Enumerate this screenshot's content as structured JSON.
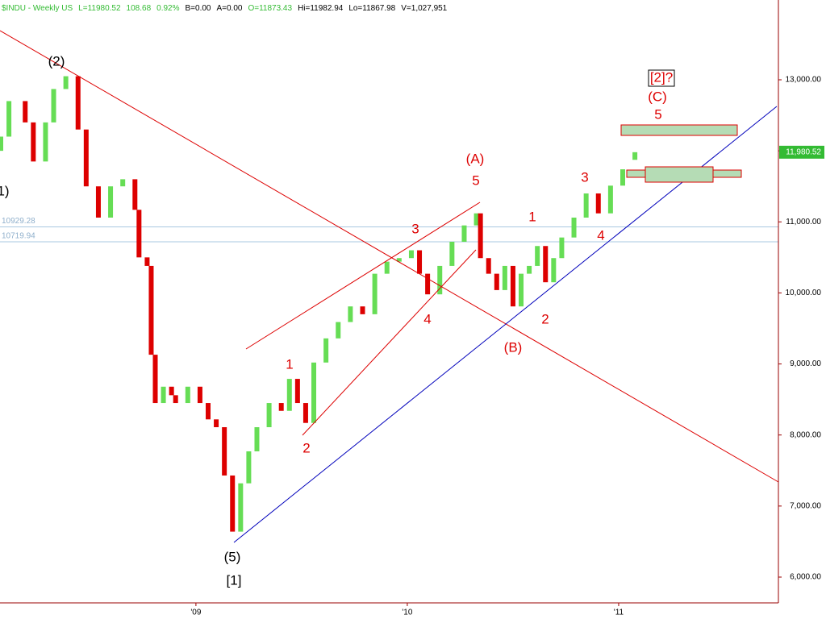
{
  "chart_data": {
    "type": "candlestick",
    "header": [
      {
        "text": "$INDU - Weekly  US",
        "color": "#33bb33"
      },
      {
        "text": "L=11980.52",
        "color": "#33bb33"
      },
      {
        "text": "108.68",
        "color": "#33bb33"
      },
      {
        "text": "0.92%",
        "color": "#33bb33"
      },
      {
        "text": "B=0.00",
        "color": "#000000"
      },
      {
        "text": "A=0.00",
        "color": "#000000"
      },
      {
        "text": "O=11873.43",
        "color": "#33bb33"
      },
      {
        "text": "Hi=11982.94",
        "color": "#000000"
      },
      {
        "text": "Lo=11867.98",
        "color": "#000000"
      },
      {
        "text": "V=1,027,951",
        "color": "#000000"
      }
    ],
    "x": [
      4,
      6,
      10,
      12,
      15,
      17,
      20,
      23,
      25,
      28,
      31,
      34,
      37,
      38,
      40,
      41,
      42,
      44,
      46,
      47,
      50,
      53,
      55,
      57,
      59,
      61,
      63,
      65,
      67,
      70,
      73,
      75,
      77,
      79,
      81,
      84,
      87,
      90,
      93,
      96,
      99,
      102,
      105,
      107,
      109,
      112,
      115,
      118,
      121,
      122,
      124,
      126,
      128,
      130,
      132,
      134,
      136,
      138,
      140,
      142,
      145,
      148,
      151,
      154,
      157,
      160
    ],
    "open": [
      12000,
      12200,
      12700,
      12400,
      11850,
      12400,
      12870,
      13050,
      12300,
      11500,
      11060,
      11500,
      11600,
      11170,
      10500,
      10380,
      9130,
      8450,
      8680,
      8560,
      8450,
      8680,
      8450,
      8220,
      8110,
      7430,
      6640,
      7320,
      7770,
      8110,
      8450,
      8340,
      8790,
      8450,
      8170,
      9020,
      9360,
      9590,
      9810,
      9700,
      10270,
      10440,
      10490,
      10600,
      10270,
      9980,
      10380,
      10720,
      10950,
      11120,
      10490,
      10270,
      10040,
      10380,
      9810,
      10270,
      10380,
      10660,
      10150,
      10490,
      10780,
      11060,
      11400,
      11120,
      11510,
      11873.43
    ],
    "close": [
      12200,
      12700,
      12400,
      11850,
      12400,
      12870,
      13050,
      12300,
      11500,
      11060,
      11500,
      11600,
      11170,
      10500,
      10380,
      9130,
      8450,
      8680,
      8560,
      8450,
      8680,
      8450,
      8220,
      8110,
      7430,
      6640,
      7320,
      7770,
      8110,
      8450,
      8340,
      8790,
      8450,
      8170,
      9020,
      9360,
      9590,
      9810,
      9700,
      10270,
      10440,
      10490,
      10600,
      10270,
      9980,
      10380,
      10720,
      10950,
      11120,
      10490,
      10270,
      10040,
      10380,
      9810,
      10270,
      10380,
      10660,
      10150,
      10490,
      10780,
      11060,
      11400,
      11120,
      11510,
      11740,
      11980.52
    ],
    "up_color": "#66dd55",
    "down_color": "#dd0000",
    "xlim": [
      3.8,
      195.3
    ],
    "xticks": [
      {
        "value": 52,
        "label": "'09"
      },
      {
        "value": 104,
        "label": "'10"
      },
      {
        "value": 156,
        "label": "'11"
      }
    ],
    "ylim": [
      5637,
      14123
    ],
    "yticks": [
      {
        "value": 6000,
        "label": "6,000.00"
      },
      {
        "value": 7000,
        "label": "7,000.00"
      },
      {
        "value": 8000,
        "label": "8,000.00"
      },
      {
        "value": 9000,
        "label": "9,000.00"
      },
      {
        "value": 10000,
        "label": "10,000.00"
      },
      {
        "value": 11000,
        "label": "11,000.00"
      },
      {
        "value": 12000,
        "label": "12,000.00"
      },
      {
        "value": 13000,
        "label": "13,000.00"
      }
    ],
    "hlines": [
      10929.28,
      10719.94
    ],
    "last_price": {
      "value": 11980.52,
      "label": "11,980.52"
    },
    "annotations": [
      {
        "text": "(2)",
        "color": "#000000"
      },
      {
        "text": "1)",
        "color": "#000000"
      },
      {
        "text": "(5)",
        "color": "#000000"
      },
      {
        "text": "[1]",
        "color": "#000000"
      },
      {
        "text": "1",
        "color": "#dd0000"
      },
      {
        "text": "2",
        "color": "#dd0000"
      },
      {
        "text": "3",
        "color": "#dd0000"
      },
      {
        "text": "4",
        "color": "#dd0000"
      },
      {
        "text": "(A)",
        "color": "#dd0000"
      },
      {
        "text": "5",
        "color": "#dd0000"
      },
      {
        "text": "(B)",
        "color": "#dd0000"
      },
      {
        "text": "1",
        "color": "#dd0000"
      },
      {
        "text": "2",
        "color": "#dd0000"
      },
      {
        "text": "3",
        "color": "#dd0000"
      },
      {
        "text": "4",
        "color": "#dd0000"
      },
      {
        "text": "(C)",
        "color": "#dd0000"
      },
      {
        "text": "5",
        "color": "#dd0000"
      },
      {
        "text": "[2]?",
        "color": "#dd0000"
      }
    ]
  }
}
